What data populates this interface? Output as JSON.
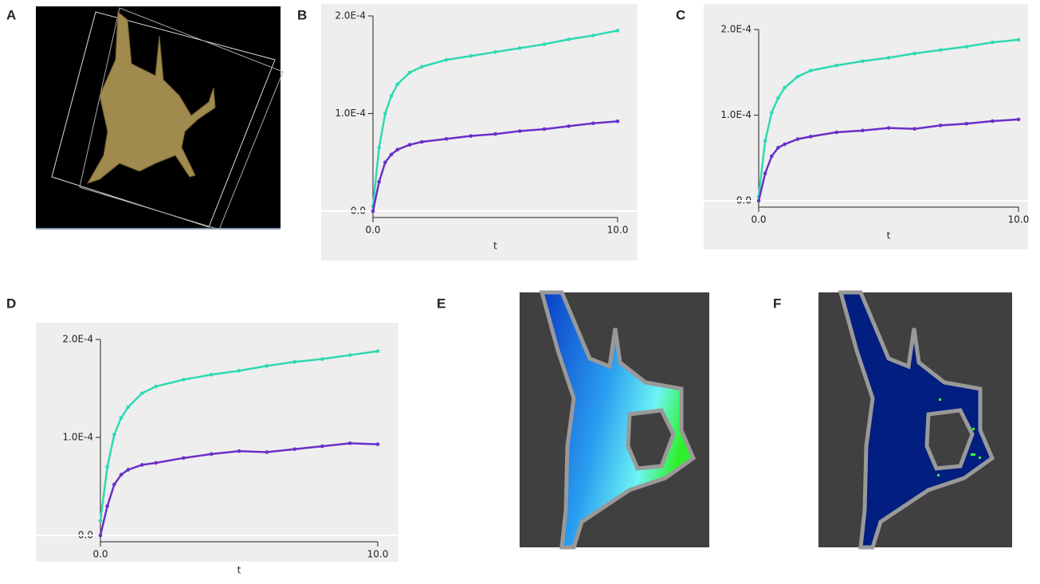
{
  "panel_labels": [
    "A",
    "B",
    "C",
    "D",
    "E",
    "F"
  ],
  "chart_data": [
    {
      "type": "line",
      "xlabel": "t",
      "x": [
        0,
        0.25,
        0.5,
        0.75,
        1,
        1.5,
        2,
        3,
        4,
        5,
        6,
        7,
        8,
        9,
        10
      ],
      "series": [
        {
          "color": "#2fd9b2",
          "values": [
            5e-06,
            6.5e-05,
            0.0001,
            0.000118,
            0.00013,
            0.000142,
            0.000148,
            0.000155,
            0.000159,
            0.000163,
            0.000167,
            0.000171,
            0.000176,
            0.00018,
            0.000185
          ]
        },
        {
          "color": "#6a2fc7",
          "values": [
            0,
            3e-05,
            5e-05,
            5.8e-05,
            6.3e-05,
            6.8e-05,
            7.1e-05,
            7.4e-05,
            7.7e-05,
            7.9e-05,
            8.2e-05,
            8.4e-05,
            8.7e-05,
            9e-05,
            9.2e-05
          ]
        }
      ],
      "xlim": [
        0,
        10
      ],
      "ylim": [
        0,
        0.0002
      ],
      "xticks": [
        {
          "value": 0,
          "label": "0.0"
        },
        {
          "value": 10,
          "label": "10.0"
        }
      ],
      "yticks": [
        {
          "value": 0,
          "label": "0.0"
        },
        {
          "value": 0.0001,
          "label": "1.0E-4"
        },
        {
          "value": 0.0002,
          "label": "2.0E-4"
        }
      ]
    },
    {
      "type": "line",
      "xlabel": "t",
      "x": [
        0,
        0.25,
        0.5,
        0.75,
        1,
        1.5,
        2,
        3,
        4,
        5,
        6,
        7,
        8,
        9,
        10
      ],
      "series": [
        {
          "color": "#2fd9b2",
          "values": [
            5e-06,
            7e-05,
            0.000103,
            0.00012,
            0.000132,
            0.000145,
            0.000152,
            0.000158,
            0.000163,
            0.000167,
            0.000172,
            0.000176,
            0.00018,
            0.000185,
            0.000188
          ]
        },
        {
          "color": "#6a2fc7",
          "values": [
            0,
            3.2e-05,
            5.2e-05,
            6.2e-05,
            6.6e-05,
            7.2e-05,
            7.5e-05,
            8e-05,
            8.2e-05,
            8.5e-05,
            8.4e-05,
            8.8e-05,
            9e-05,
            9.3e-05,
            9.5e-05
          ]
        }
      ],
      "xlim": [
        0,
        10
      ],
      "ylim": [
        0,
        0.0002
      ],
      "xticks": [
        {
          "value": 0,
          "label": "0.0"
        },
        {
          "value": 10,
          "label": "10.0"
        }
      ],
      "yticks": [
        {
          "value": 0,
          "label": "0.0"
        },
        {
          "value": 0.0001,
          "label": "1.0E-4"
        },
        {
          "value": 0.0002,
          "label": "2.0E-4"
        }
      ]
    },
    {
      "type": "line",
      "xlabel": "t",
      "x": [
        0,
        0.25,
        0.5,
        0.75,
        1,
        1.5,
        2,
        3,
        4,
        5,
        6,
        7,
        8,
        9,
        10
      ],
      "series": [
        {
          "color": "#2fd9b2",
          "values": [
            1.5e-05,
            7e-05,
            0.000103,
            0.00012,
            0.000131,
            0.000145,
            0.000152,
            0.000159,
            0.000164,
            0.000168,
            0.000173,
            0.000177,
            0.00018,
            0.000184,
            0.000188
          ]
        },
        {
          "color": "#6a2fc7",
          "values": [
            0,
            3e-05,
            5.2e-05,
            6.2e-05,
            6.7e-05,
            7.2e-05,
            7.4e-05,
            7.9e-05,
            8.3e-05,
            8.6e-05,
            8.5e-05,
            8.8e-05,
            9.1e-05,
            9.4e-05,
            9.3e-05
          ]
        }
      ],
      "xlim": [
        0,
        10
      ],
      "ylim": [
        0,
        0.0002
      ],
      "xticks": [
        {
          "value": 0,
          "label": "0.0"
        },
        {
          "value": 10,
          "label": "10.0"
        }
      ],
      "yticks": [
        {
          "value": 0,
          "label": "0.0"
        },
        {
          "value": 0.0001,
          "label": "1.0E-4"
        },
        {
          "value": 0.0002,
          "label": "2.0E-4"
        }
      ]
    }
  ]
}
